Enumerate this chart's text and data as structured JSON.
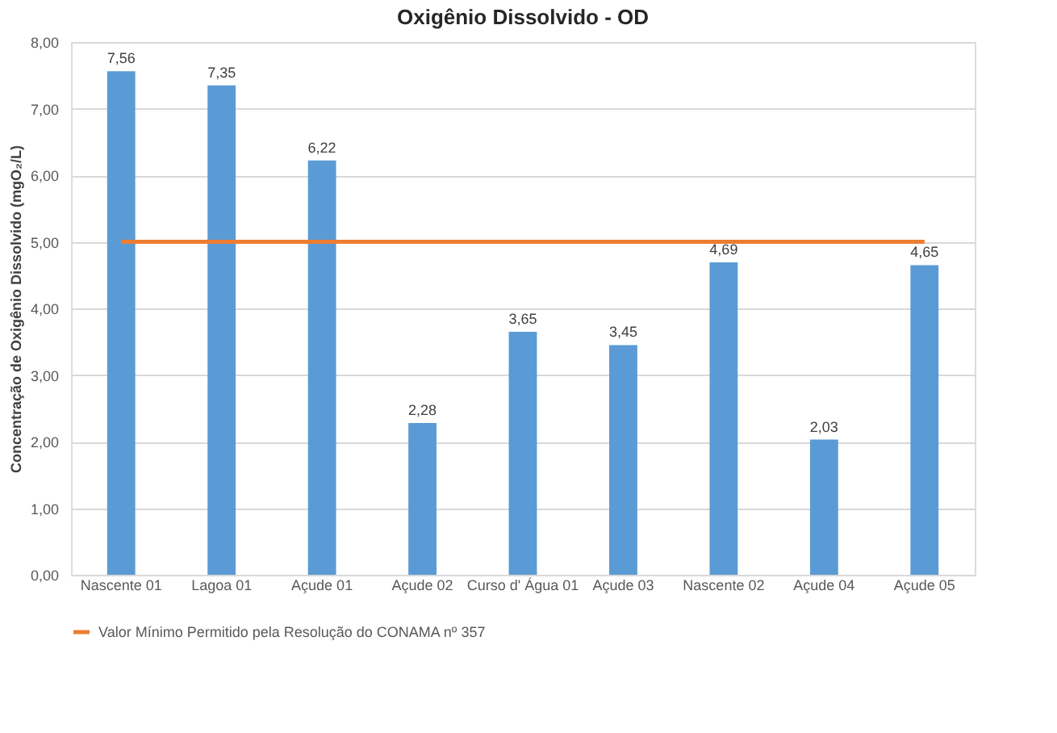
{
  "chart_data": {
    "type": "bar",
    "title": "Oxigênio Dissolvido - OD",
    "ylabel": "Concentração de Oxigênio Dissolvido (mgO₂/L)",
    "categories": [
      "Nascente 01",
      "Lagoa 01",
      "Açude 01",
      "Açude 02",
      "Curso d' Água 01",
      "Açude 03",
      "Nascente 02",
      "Açude 04",
      "Açude 05"
    ],
    "values": [
      7.56,
      7.35,
      6.22,
      2.28,
      3.65,
      3.45,
      4.69,
      2.03,
      4.65
    ],
    "value_labels": [
      "7,56",
      "7,35",
      "6,22",
      "2,28",
      "3,65",
      "3,45",
      "4,69",
      "2,03",
      "4,65"
    ],
    "color": "#5b9bd5",
    "ylim": [
      0,
      8
    ],
    "yticks": [
      {
        "value": 0,
        "label": "0,00"
      },
      {
        "value": 1,
        "label": "1,00"
      },
      {
        "value": 2,
        "label": "2,00"
      },
      {
        "value": 3,
        "label": "3,00"
      },
      {
        "value": 4,
        "label": "4,00"
      },
      {
        "value": 5,
        "label": "5,00"
      },
      {
        "value": 6,
        "label": "6,00"
      },
      {
        "value": 7,
        "label": "7,00"
      },
      {
        "value": 8,
        "label": "8,00"
      }
    ],
    "ref_lines": [
      {
        "axis": "y",
        "value": 5,
        "label": "Valor Mínimo Permitido pela Resolução do CONAMA nº 357",
        "color": "#ed7d31"
      }
    ],
    "grid": "y",
    "legend": "bottom"
  }
}
